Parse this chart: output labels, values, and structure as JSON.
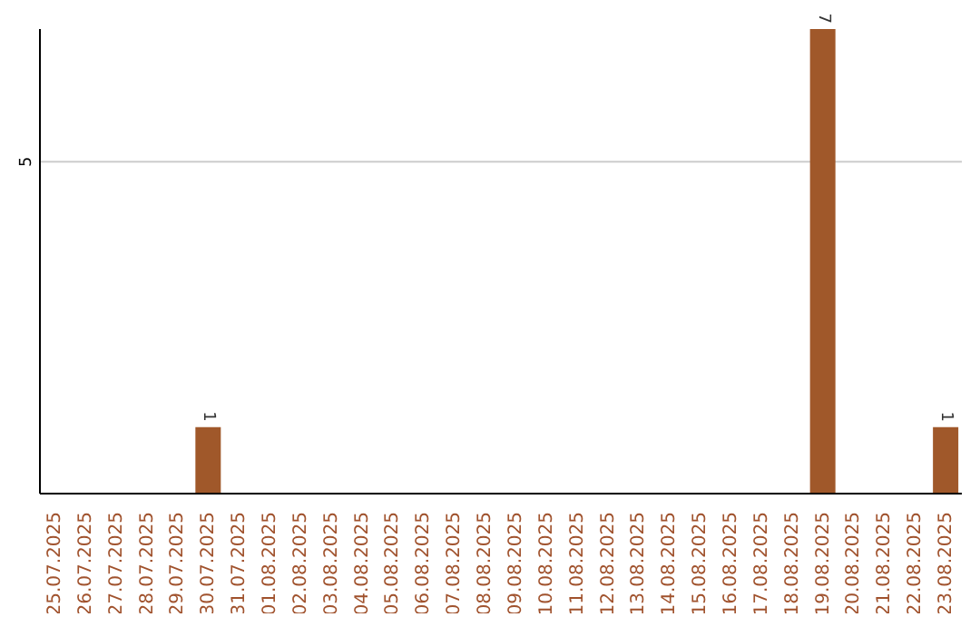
{
  "chart_data": {
    "type": "bar",
    "categories": [
      "25.07.2025",
      "26.07.2025",
      "27.07.2025",
      "28.07.2025",
      "29.07.2025",
      "30.07.2025",
      "31.07.2025",
      "01.08.2025",
      "02.08.2025",
      "03.08.2025",
      "04.08.2025",
      "05.08.2025",
      "06.08.2025",
      "07.08.2025",
      "08.08.2025",
      "09.08.2025",
      "10.08.2025",
      "11.08.2025",
      "12.08.2025",
      "13.08.2025",
      "14.08.2025",
      "15.08.2025",
      "16.08.2025",
      "17.08.2025",
      "18.08.2025",
      "19.08.2025",
      "20.08.2025",
      "21.08.2025",
      "22.08.2025",
      "23.08.2025"
    ],
    "values": [
      0,
      0,
      0,
      0,
      0,
      1,
      0,
      0,
      0,
      0,
      0,
      0,
      0,
      0,
      0,
      0,
      0,
      0,
      0,
      0,
      0,
      0,
      0,
      0,
      0,
      7,
      0,
      0,
      0,
      1
    ],
    "value_labels": [
      null,
      null,
      null,
      null,
      null,
      "1",
      null,
      null,
      null,
      null,
      null,
      null,
      null,
      null,
      null,
      null,
      null,
      null,
      null,
      null,
      null,
      null,
      null,
      null,
      null,
      "7",
      null,
      null,
      null,
      "1"
    ],
    "color": "#a0582a",
    "ylim": [
      0,
      7
    ],
    "yticks": [
      5
    ],
    "grid": "y"
  }
}
